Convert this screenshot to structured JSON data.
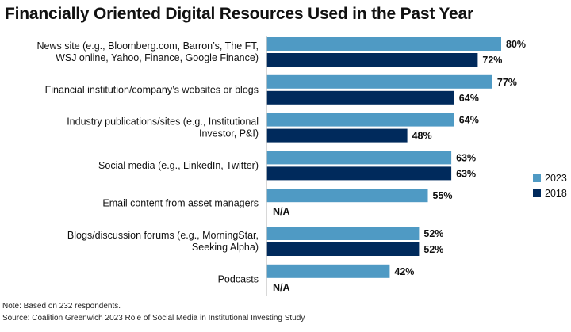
{
  "chart_data": {
    "type": "bar",
    "orientation": "horizontal",
    "title": "Financially Oriented Digital Resources Used in the Past Year",
    "categories": [
      [
        "News site (e.g., Bloomberg.com, Barron’s, The FT,",
        "WSJ online, Yahoo, Finance, Google Finance)"
      ],
      [
        "Financial institution/company’s websites or blogs"
      ],
      [
        "Industry publications/sites (e.g., Institutional",
        "Investor, P&I)"
      ],
      [
        "Social media (e.g., LinkedIn, Twitter)"
      ],
      [
        "Email content from asset managers"
      ],
      [
        "Blogs/discussion forums (e.g., MorningStar,",
        "Seeking Alpha)"
      ],
      [
        "Podcasts"
      ]
    ],
    "series": [
      {
        "name": "2023",
        "color": "#4f9ac4",
        "values": [
          80,
          77,
          64,
          63,
          55,
          52,
          42
        ]
      },
      {
        "name": "2018",
        "color": "#002a5c",
        "values": [
          72,
          64,
          48,
          63,
          null,
          52,
          null
        ]
      }
    ],
    "missing_label": "N/A",
    "value_suffix": "%",
    "xlim": [
      0,
      100
    ],
    "grid": false,
    "legend_position": "right"
  },
  "notes": {
    "note": "Note: Based on 232 respondents.",
    "source": "Source: Coalition Greenwich 2023 Role of Social Media in Institutional Investing Study"
  }
}
